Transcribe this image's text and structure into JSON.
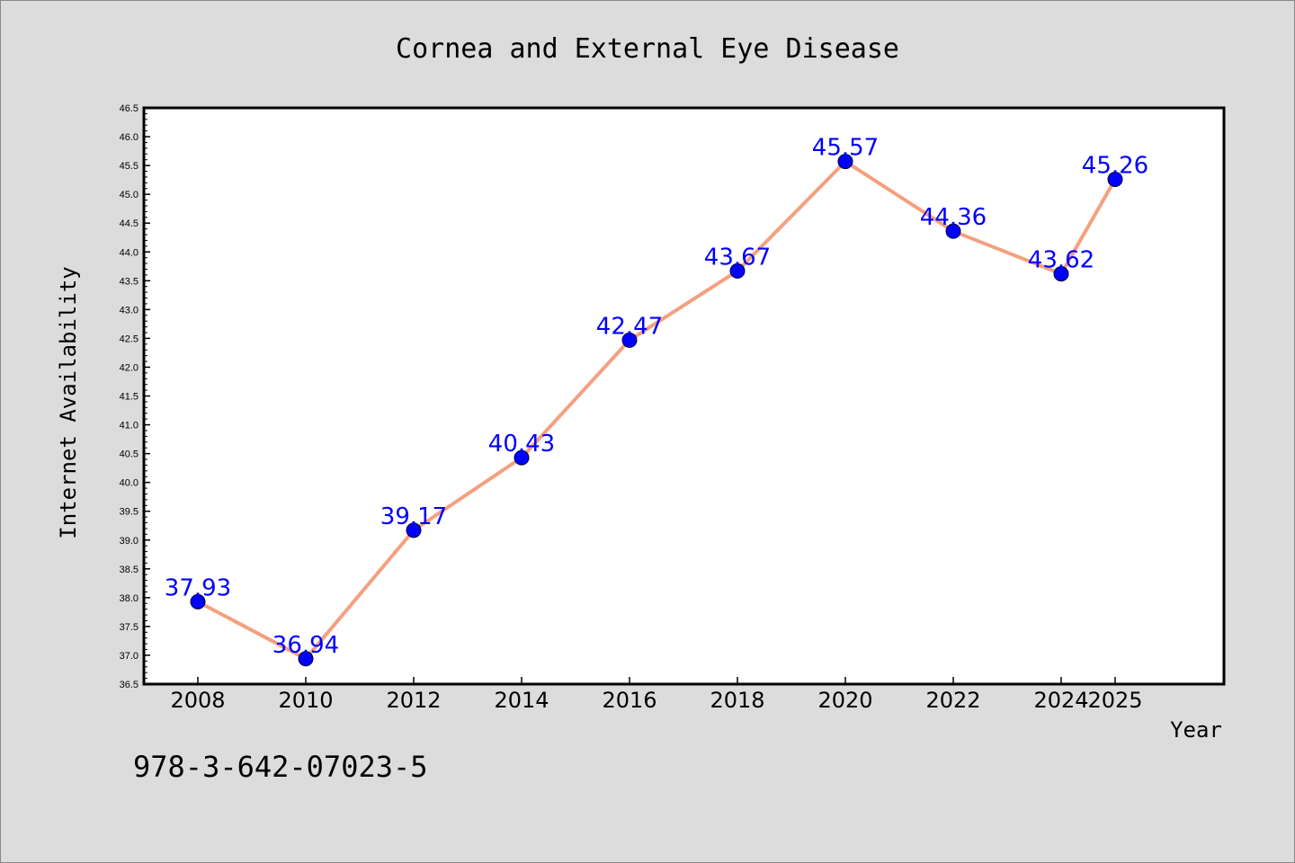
{
  "chart_data": {
    "type": "line",
    "title": "Cornea and External Eye Disease",
    "xlabel": "Year",
    "ylabel": "Internet Availability",
    "x": [
      "2008",
      "2010",
      "2012",
      "2014",
      "2016",
      "2018",
      "2020",
      "2022",
      "2024",
      "2025"
    ],
    "series": [
      {
        "values": [
          37.93,
          36.94,
          39.17,
          40.43,
          42.47,
          43.67,
          45.57,
          44.36,
          43.62,
          45.26
        ]
      }
    ],
    "data_labels": [
      "37.93",
      "36.94",
      "39.17",
      "40.43",
      "42.47",
      "43.67",
      "45.57",
      "44.36",
      "43.62",
      "45.26"
    ],
    "ylim": [
      36.5,
      46.5
    ],
    "y_ticks": [
      "36.5",
      "37.0",
      "37.5",
      "38.0",
      "38.5",
      "39.0",
      "39.5",
      "40.0",
      "40.5",
      "41.0",
      "41.5",
      "42.0",
      "42.5",
      "43.0",
      "43.5",
      "44.0",
      "44.5",
      "45.0",
      "45.5",
      "46.0",
      "46.5"
    ],
    "grid": false,
    "line_color": "#f4a07f",
    "marker_color": "#0000ff",
    "label_color": "#0000ff"
  },
  "footer_text": "978-3-642-07023-5"
}
